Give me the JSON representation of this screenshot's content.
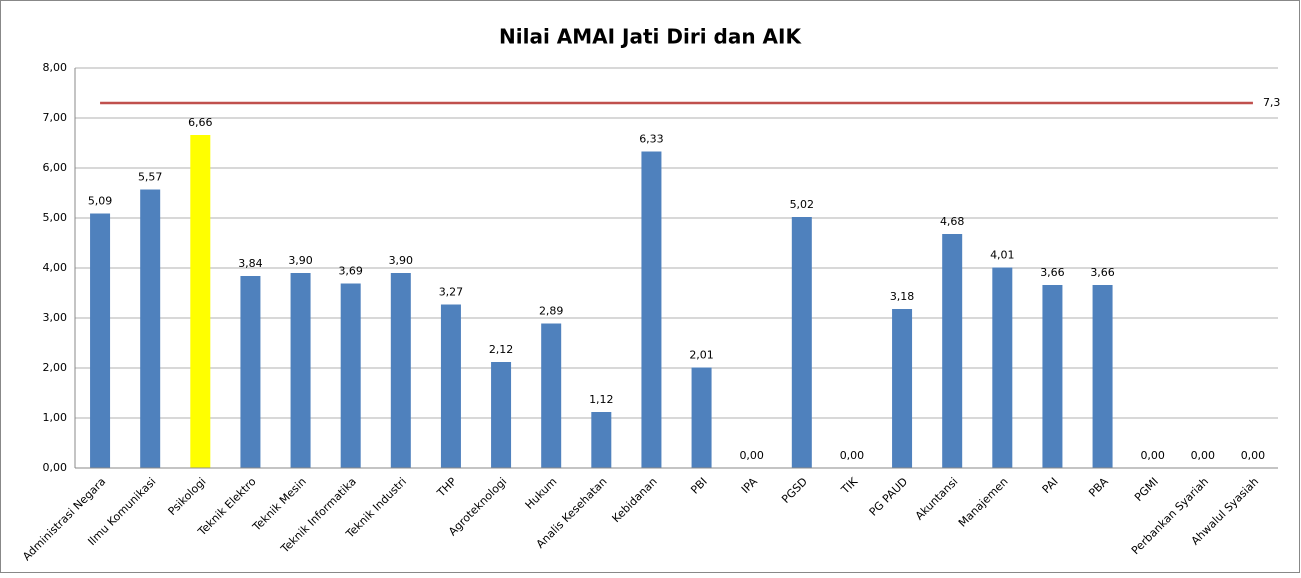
{
  "chart_data": {
    "type": "bar",
    "title": "Nilai AMAI Jati Diri dan AIK",
    "categories": [
      "Administrasi Negara",
      "Ilmu Komunikasi",
      "Psikologi",
      "Teknik Elektro",
      "Teknik Mesin",
      "Teknik Informatika",
      "Teknik Industri",
      "THP",
      "Agroteknologi",
      "Hukum",
      "Analis Kesehatan",
      "Kebidanan",
      "PBI",
      "IPA",
      "PGSD",
      "TIK",
      "PG PAUD",
      "Akuntansi",
      "Manajemen",
      "PAI",
      "PBA",
      "PGMI",
      "Perbankan Syariah",
      "Ahwalul Syasiah"
    ],
    "values": [
      5.09,
      5.57,
      6.66,
      3.84,
      3.9,
      3.69,
      3.9,
      3.27,
      2.12,
      2.89,
      1.12,
      6.33,
      2.01,
      0.0,
      5.02,
      0.0,
      3.18,
      4.68,
      4.01,
      3.66,
      3.66,
      0.0,
      0.0,
      0.0
    ],
    "value_labels": [
      "5,09",
      "5,57",
      "6,66",
      "3,84",
      "3,90",
      "3,69",
      "3,90",
      "3,27",
      "2,12",
      "2,89",
      "1,12",
      "6,33",
      "2,01",
      "0,00",
      "5,02",
      "0,00",
      "3,18",
      "4,68",
      "4,01",
      "3,66",
      "3,66",
      "0,00",
      "0,00",
      "0,00"
    ],
    "colors": [
      "#4f81bd",
      "#4f81bd",
      "#ffff00",
      "#4f81bd",
      "#4f81bd",
      "#4f81bd",
      "#4f81bd",
      "#4f81bd",
      "#4f81bd",
      "#4f81bd",
      "#4f81bd",
      "#4f81bd",
      "#4f81bd",
      "#4f81bd",
      "#4f81bd",
      "#4f81bd",
      "#4f81bd",
      "#4f81bd",
      "#4f81bd",
      "#4f81bd",
      "#4f81bd",
      "#4f81bd",
      "#4f81bd",
      "#4f81bd"
    ],
    "ylim": [
      0,
      8
    ],
    "yticks": [
      {
        "value": 0,
        "label": "0,00"
      },
      {
        "value": 1,
        "label": "1,00"
      },
      {
        "value": 2,
        "label": "2,00"
      },
      {
        "value": 3,
        "label": "3,00"
      },
      {
        "value": 4,
        "label": "4,00"
      },
      {
        "value": 5,
        "label": "5,00"
      },
      {
        "value": 6,
        "label": "6,00"
      },
      {
        "value": 7,
        "label": "7,00"
      },
      {
        "value": 8,
        "label": "8,00"
      }
    ],
    "grid": true,
    "reference_line": {
      "value": 7.3,
      "label": "7,3",
      "color": "#c0504d"
    }
  }
}
